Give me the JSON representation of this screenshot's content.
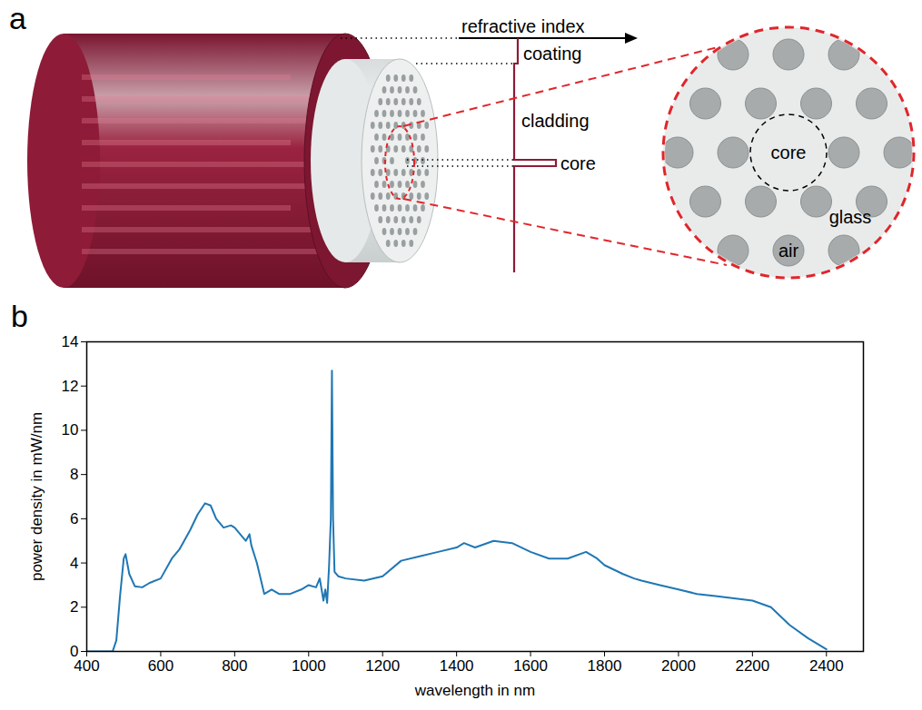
{
  "diagram": {
    "panel_label": "a",
    "profile": {
      "axis_label": "refractive index",
      "layers": [
        "coating",
        "cladding",
        "core"
      ]
    },
    "zoom": {
      "core": "core",
      "glass": "glass",
      "air": "air"
    }
  },
  "chart_data": {
    "type": "line",
    "panel_label": "b",
    "xlabel": "wavelength in nm",
    "ylabel": "power density in mW/nm",
    "x": [
      400,
      470,
      480,
      490,
      500,
      505,
      515,
      530,
      550,
      570,
      600,
      630,
      650,
      660,
      680,
      700,
      720,
      735,
      750,
      770,
      790,
      800,
      820,
      830,
      840,
      845,
      860,
      880,
      900,
      920,
      950,
      980,
      1000,
      1020,
      1030,
      1040,
      1045,
      1050,
      1055,
      1060,
      1063,
      1066,
      1070,
      1080,
      1100,
      1150,
      1200,
      1250,
      1300,
      1350,
      1400,
      1420,
      1450,
      1500,
      1550,
      1600,
      1650,
      1700,
      1750,
      1780,
      1800,
      1850,
      1880,
      1900,
      1950,
      2000,
      2050,
      2100,
      2150,
      2200,
      2250,
      2300,
      2350,
      2400
    ],
    "values": [
      0,
      0,
      0.5,
      2.5,
      4.2,
      4.4,
      3.5,
      2.95,
      2.9,
      3.1,
      3.3,
      4.2,
      4.6,
      4.9,
      5.5,
      6.2,
      6.7,
      6.6,
      6.0,
      5.6,
      5.7,
      5.6,
      5.2,
      5.0,
      5.3,
      4.8,
      4.0,
      2.6,
      2.8,
      2.6,
      2.6,
      2.8,
      3.0,
      2.9,
      3.3,
      2.3,
      2.8,
      2.2,
      3.8,
      6.0,
      12.7,
      6.0,
      3.6,
      3.4,
      3.3,
      3.2,
      3.4,
      4.1,
      4.3,
      4.5,
      4.7,
      4.9,
      4.7,
      5.0,
      4.9,
      4.5,
      4.2,
      4.2,
      4.5,
      4.2,
      3.9,
      3.5,
      3.3,
      3.2,
      3.0,
      2.8,
      2.6,
      2.5,
      2.4,
      2.3,
      2.0,
      1.2,
      0.6,
      0.1
    ],
    "color": "#1f77b4",
    "xlim": [
      400,
      2500
    ],
    "xticks": [
      400,
      600,
      800,
      1000,
      1200,
      1400,
      1600,
      1800,
      2000,
      2200,
      2400
    ],
    "ylim": [
      0,
      14
    ],
    "yticks": [
      0,
      2,
      4,
      6,
      8,
      10,
      12,
      14
    ],
    "grid": false
  }
}
